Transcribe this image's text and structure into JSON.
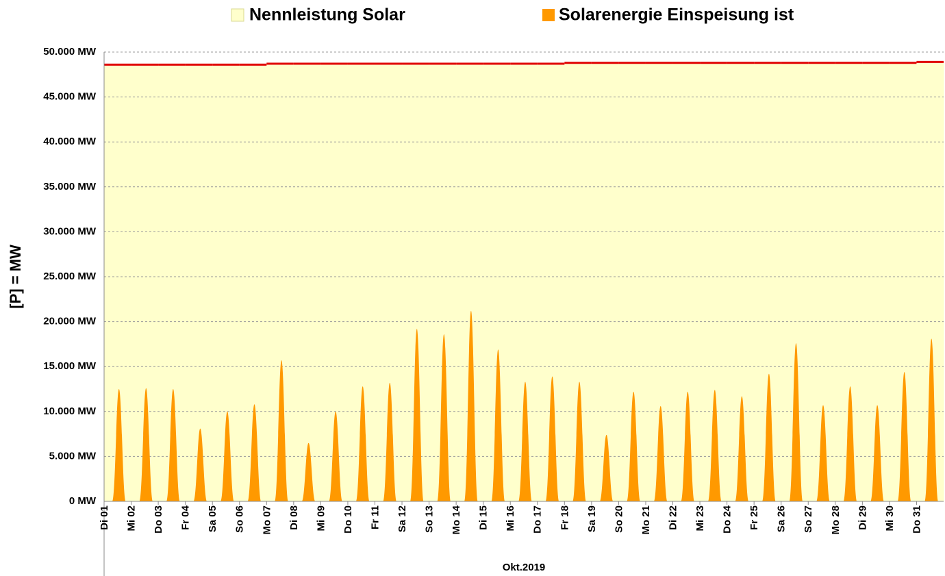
{
  "chart_data": {
    "type": "area",
    "y_label": "[P] = MW",
    "x_label": "Okt.2019",
    "categories": [
      "Di 01",
      "Mi 02",
      "Do 03",
      "Fr 04",
      "Sa 05",
      "So 06",
      "Mo 07",
      "Di 08",
      "Mi 09",
      "Do 10",
      "Fr 11",
      "Sa 12",
      "So 13",
      "Mo 14",
      "Di 15",
      "Mi 16",
      "Do 17",
      "Fr 18",
      "Sa 19",
      "So 20",
      "Mo 21",
      "Di 22",
      "Mi 23",
      "Do 24",
      "Fr 25",
      "Sa 26",
      "So 27",
      "Mo 28",
      "Di 29",
      "Mi 30",
      "Do 31"
    ],
    "series": [
      {
        "name": "Nennleistung Solar",
        "color": "#ffffcc",
        "line_color": "#e00000",
        "values": [
          48600,
          48600,
          48600,
          48600,
          48600,
          48600,
          48700,
          48700,
          48700,
          48700,
          48700,
          48700,
          48700,
          48700,
          48700,
          48700,
          48700,
          48800,
          48800,
          48800,
          48800,
          48800,
          48800,
          48800,
          48800,
          48800,
          48800,
          48800,
          48800,
          48800,
          48900
        ]
      },
      {
        "name": "Solarenergie Einspeisung ist",
        "color": "#ff9900",
        "values": [
          12500,
          12600,
          12500,
          8100,
          10000,
          10800,
          15700,
          6500,
          10000,
          12800,
          13200,
          19200,
          18600,
          21200,
          16900,
          13300,
          13900,
          13300,
          7400,
          12200,
          10600,
          12200,
          12400,
          11700,
          14200,
          17600,
          10700,
          12800,
          10700,
          14400,
          18100
        ]
      }
    ],
    "ylim": [
      0,
      50000
    ],
    "yticks": [
      {
        "value": 0,
        "label": "0 MW"
      },
      {
        "value": 5000,
        "label": "5.000 MW"
      },
      {
        "value": 10000,
        "label": "10.000 MW"
      },
      {
        "value": 15000,
        "label": "15.000 MW"
      },
      {
        "value": 20000,
        "label": "20.000 MW"
      },
      {
        "value": 25000,
        "label": "25.000 MW"
      },
      {
        "value": 30000,
        "label": "30.000 MW"
      },
      {
        "value": 35000,
        "label": "35.000 MW"
      },
      {
        "value": 40000,
        "label": "40.000 MW"
      },
      {
        "value": 45000,
        "label": "45.000 MW"
      },
      {
        "value": 50000,
        "label": "50.000 MW"
      }
    ],
    "grid": true
  }
}
